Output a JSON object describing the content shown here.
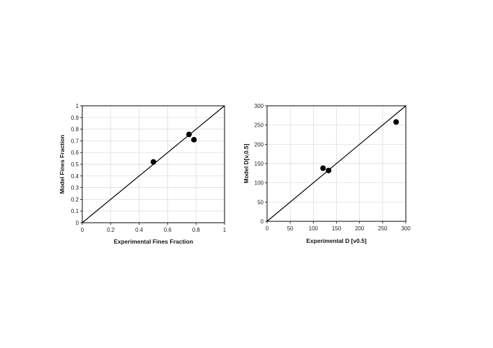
{
  "chart_data": [
    {
      "type": "scatter",
      "xlabel": "Experimental Fines Fraction",
      "ylabel": "Model Fines Fraction",
      "xlim": [
        0,
        1
      ],
      "ylim": [
        0,
        1
      ],
      "xticks": [
        0,
        0.2,
        0.4,
        0.6,
        0.8,
        1
      ],
      "yticks": [
        0,
        0.1,
        0.2,
        0.3,
        0.4,
        0.5,
        0.6,
        0.7,
        0.8,
        0.9,
        1
      ],
      "xtick_labels": [
        "0",
        "0.2",
        "0.4",
        "0.6",
        "0.8",
        "1"
      ],
      "ytick_labels": [
        "0",
        "0.1",
        "0.2",
        "0.3",
        "0.4",
        "0.5",
        "0.6",
        "0.7",
        "0.8",
        "0.9",
        "1"
      ],
      "points": [
        {
          "x": 0.5,
          "y": 0.52
        },
        {
          "x": 0.75,
          "y": 0.755
        },
        {
          "x": 0.785,
          "y": 0.71
        }
      ],
      "reference_line": "y = x",
      "grid": true,
      "marker_color": "#000000"
    },
    {
      "type": "scatter",
      "xlabel": "Experimental D [v0.5]",
      "ylabel": "Model D[v,0.5]",
      "xlim": [
        0,
        300
      ],
      "ylim": [
        0,
        300
      ],
      "xticks": [
        0,
        50,
        100,
        150,
        200,
        250,
        300
      ],
      "yticks": [
        0,
        50,
        100,
        150,
        200,
        250,
        300
      ],
      "xtick_labels": [
        "0",
        "50",
        "100",
        "150",
        "200",
        "250",
        "300"
      ],
      "ytick_labels": [
        "0",
        "50",
        "100",
        "150",
        "200",
        "250",
        "300"
      ],
      "points": [
        {
          "x": 121,
          "y": 138
        },
        {
          "x": 133,
          "y": 132
        },
        {
          "x": 279,
          "y": 258
        }
      ],
      "reference_line": "y = x",
      "grid": true,
      "marker_color": "#000000"
    }
  ]
}
